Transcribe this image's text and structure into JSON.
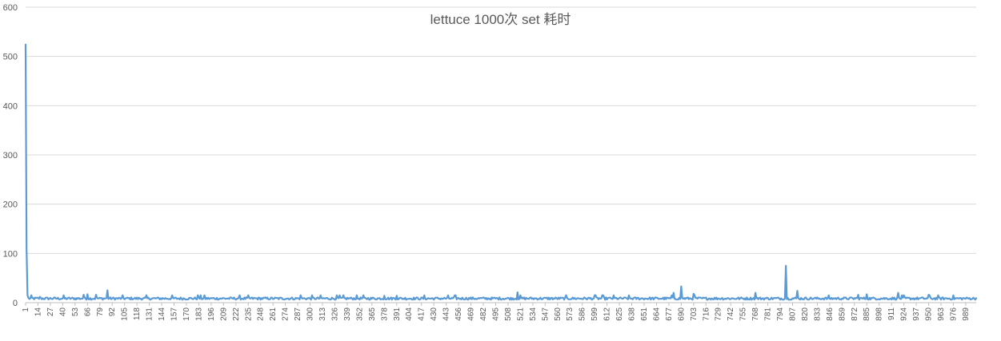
{
  "chart_data": {
    "type": "line",
    "title": "lettuce 1000次 set 耗时",
    "xlabel": "",
    "ylabel": "",
    "ylim": [
      0,
      600
    ],
    "yticks": [
      0,
      100,
      200,
      300,
      400,
      500,
      600
    ],
    "grid": true,
    "legend": "none",
    "x_start": 1,
    "x_end": 1000,
    "x_tick_step": 13,
    "x_tick_labels": [
      "1",
      "14",
      "27",
      "40",
      "53",
      "66",
      "79",
      "92",
      "105",
      "118",
      "131",
      "144",
      "157",
      "170",
      "183",
      "196",
      "209",
      "222",
      "235",
      "248",
      "261",
      "274",
      "287",
      "300",
      "313",
      "326",
      "339",
      "352",
      "365",
      "378",
      "391",
      "404",
      "417",
      "430",
      "443",
      "456",
      "469",
      "482",
      "495",
      "508",
      "521",
      "534",
      "547",
      "560",
      "573",
      "586",
      "599",
      "612",
      "625",
      "638",
      "651",
      "664",
      "677",
      "690",
      "703",
      "716",
      "729",
      "742",
      "755",
      "768",
      "781",
      "794",
      "807",
      "820",
      "833",
      "846",
      "859",
      "872",
      "885",
      "898",
      "911",
      "924",
      "937",
      "950",
      "963",
      "976",
      "989"
    ],
    "baseline": 8,
    "series": [
      {
        "color": "#5b9bd5",
        "spikes": [
          {
            "x": 1,
            "y": 524
          },
          {
            "x": 2,
            "y": 110
          },
          {
            "x": 3,
            "y": 15
          },
          {
            "x": 16,
            "y": 12
          },
          {
            "x": 62,
            "y": 16
          },
          {
            "x": 66,
            "y": 17
          },
          {
            "x": 75,
            "y": 16
          },
          {
            "x": 87,
            "y": 25
          },
          {
            "x": 182,
            "y": 15
          },
          {
            "x": 290,
            "y": 15
          },
          {
            "x": 378,
            "y": 14
          },
          {
            "x": 391,
            "y": 14
          },
          {
            "x": 518,
            "y": 21
          },
          {
            "x": 600,
            "y": 15
          },
          {
            "x": 682,
            "y": 20
          },
          {
            "x": 690,
            "y": 33
          },
          {
            "x": 703,
            "y": 18
          },
          {
            "x": 768,
            "y": 20
          },
          {
            "x": 800,
            "y": 75
          },
          {
            "x": 812,
            "y": 24
          },
          {
            "x": 876,
            "y": 16
          },
          {
            "x": 885,
            "y": 17
          },
          {
            "x": 918,
            "y": 20
          },
          {
            "x": 950,
            "y": 16
          }
        ]
      }
    ]
  }
}
